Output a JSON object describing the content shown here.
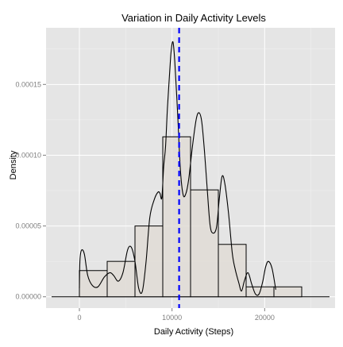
{
  "chart_data": {
    "type": "histogram",
    "title": "Variation in Daily Activity Levels",
    "xlabel": "Daily Activity (Steps)",
    "ylabel": "Density",
    "xlim": [
      -3600,
      27600
    ],
    "ylim": [
      -8e-06,
      0.00019
    ],
    "x_ticks": [
      0,
      10000,
      20000
    ],
    "x_tick_labels": [
      "0",
      "10000",
      "20000"
    ],
    "y_ticks": [
      0,
      5e-05,
      0.0001,
      0.00015
    ],
    "y_tick_labels": [
      "0.00000",
      "0.00005",
      "0.00010",
      "0.00015"
    ],
    "grid": true,
    "bins": [
      {
        "x0": 0,
        "x1": 3000,
        "density": 1.85e-05
      },
      {
        "x0": 3000,
        "x1": 6000,
        "density": 2.5e-05
      },
      {
        "x0": 6000,
        "x1": 9000,
        "density": 5e-05
      },
      {
        "x0": 9000,
        "x1": 12000,
        "density": 0.000113
      },
      {
        "x0": 12000,
        "x1": 15000,
        "density": 7.55e-05
      },
      {
        "x0": 15000,
        "x1": 18000,
        "density": 3.7e-05
      },
      {
        "x0": 18000,
        "x1": 21000,
        "density": 7e-06
      },
      {
        "x0": 21000,
        "x1": 24000,
        "density": 7e-06
      }
    ],
    "baseline_range": [
      -3000,
      27000
    ],
    "density_curve": {
      "x": [
        0,
        60,
        240,
        540,
        900,
        1400,
        2000,
        2700,
        3300,
        3700,
        4200,
        4700,
        5200,
        5600,
        6000,
        6400,
        6800,
        7200,
        7600,
        8100,
        8500,
        8700,
        8900,
        9100,
        9300,
        9500,
        9700,
        9900,
        10100,
        10300,
        10600,
        10900,
        11200,
        11500,
        11800,
        12200,
        12600,
        12900,
        13200,
        13500,
        13800,
        14100,
        14400,
        14800,
        15100,
        15400,
        15700,
        16100,
        16500,
        16800,
        17200,
        17500,
        17800,
        18200,
        18600,
        19000,
        19400,
        19800,
        20100,
        20400,
        20800,
        21200
      ],
      "y": [
        6e-06,
        2.6e-05,
        3.3e-05,
        3e-05,
        1.5e-05,
        8e-06,
        7e-06,
        1.4e-05,
        1.7e-05,
        1.5e-05,
        1.1e-05,
        1.7e-05,
        3.3e-05,
        3.5e-05,
        2.5e-05,
        6e-06,
        4e-06,
        2.5e-05,
        5.6e-05,
        6.9e-05,
        7.4e-05,
        7.3e-05,
        7e-05,
        9.2e-05,
        0.000106,
        0.000133,
        0.000154,
        0.000173,
        0.00018,
        0.000166,
        0.00013,
        9e-05,
        7.2e-05,
        7.3e-05,
        8.3e-05,
        0.000106,
        0.000125,
        0.00013,
        0.000124,
        0.000103,
        7.6e-05,
        5.1e-05,
        4.5e-05,
        4.9e-05,
        6.9e-05,
        8.5e-05,
        8e-05,
        5.9e-05,
        3.1e-05,
        2e-05,
        1e-05,
        4e-06,
        1.1e-05,
        1.7e-05,
        9e-06,
        2e-06,
        2e-06,
        1.1e-05,
        2.1e-05,
        2.5e-05,
        2e-05,
        5e-06
      ]
    },
    "mean_line": {
      "x": 10766,
      "color": "#0000ff",
      "style": "dashed"
    },
    "colors": {
      "panel": "#e5e5e5",
      "grid_major": "#ffffff",
      "grid_minor": "#f2f2f2",
      "bar_fill": "#e0dcd6",
      "bar_stroke": "#000000",
      "curve": "#000000",
      "tick_text": "#7f7f7f"
    }
  }
}
